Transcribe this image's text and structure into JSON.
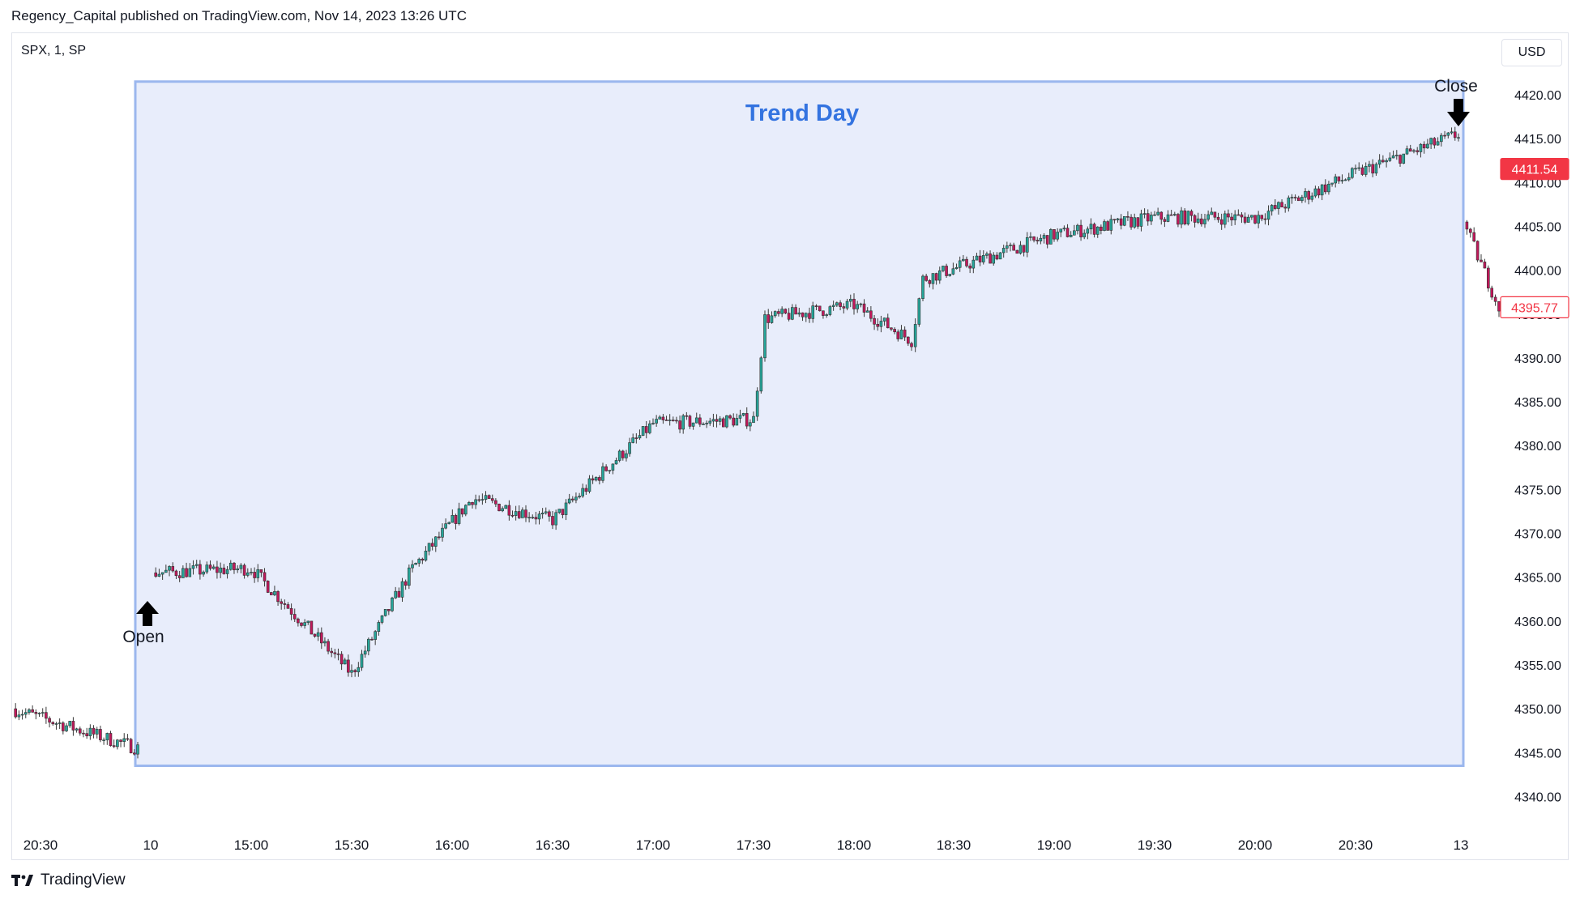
{
  "header": {
    "published": "Regency_Capital published on TradingView.com, Nov 14, 2023 13:26 UTC"
  },
  "symbol": "SPX, 1, SP",
  "currency": "USD",
  "branding": {
    "name": "TradingView",
    "logo_icon": "tradingview-logo-icon"
  },
  "colors": {
    "up": "#26a69a",
    "down": "#c2185b",
    "body": "#2f2f2f",
    "box_fill": "#e8edfb",
    "box_border": "#9bb7ee",
    "title": "#3373e0",
    "last_price_bg": "#f23645"
  },
  "chart_data": {
    "type": "candlestick",
    "title": "Trend Day",
    "annotations": [
      {
        "text": "Open",
        "icon": "arrow-up-icon",
        "x": "10",
        "y": 4359
      },
      {
        "text": "Close",
        "icon": "arrow-down-icon",
        "x": "13",
        "y": 4419
      }
    ],
    "x_ticks": [
      "20:30",
      "10",
      "15:00",
      "15:30",
      "16:00",
      "16:30",
      "17:00",
      "17:30",
      "18:00",
      "18:30",
      "19:00",
      "19:30",
      "20:00",
      "20:30",
      "13"
    ],
    "y_ticks": [
      "4420.00",
      "4415.00",
      "4410.00",
      "4405.00",
      "4400.00",
      "4395.00",
      "4390.00",
      "4385.00",
      "4380.00",
      "4375.00",
      "4370.00",
      "4365.00",
      "4360.00",
      "4355.00",
      "4350.00",
      "4345.00",
      "4340.00"
    ],
    "ylim": [
      4340,
      4420
    ],
    "price_labels": [
      {
        "text": "4411.54",
        "value": 4411.54,
        "style": "filled"
      },
      {
        "text": "4395.77",
        "value": 4395.77,
        "style": "outlined"
      }
    ],
    "highlight_box": {
      "x_start": "10",
      "x_end": "13",
      "y_low": 4343.5,
      "y_high": 4421.5
    },
    "price_path": [
      {
        "x": "20:30",
        "y": 4350
      },
      {
        "x": "10",
        "y": 4345.5
      },
      {
        "x": "10",
        "y": 4365.5
      },
      {
        "x": "15:00",
        "y": 4366
      },
      {
        "x": "15:30",
        "y": 4354
      },
      {
        "x": "16:00",
        "y": 4366
      },
      {
        "x": "16:00",
        "y": 4374
      },
      {
        "x": "16:30",
        "y": 4371.5
      },
      {
        "x": "17:00",
        "y": 4382.5
      },
      {
        "x": "17:30",
        "y": 4383
      },
      {
        "x": "17:30",
        "y": 4394.5
      },
      {
        "x": "18:00",
        "y": 4396
      },
      {
        "x": "18:30",
        "y": 4392
      },
      {
        "x": "18:30",
        "y": 4399
      },
      {
        "x": "19:00",
        "y": 4404
      },
      {
        "x": "19:30",
        "y": 4406
      },
      {
        "x": "20:00",
        "y": 4406
      },
      {
        "x": "20:30",
        "y": 4411
      },
      {
        "x": "13",
        "y": 4415.5
      },
      {
        "x": "13",
        "y": 4405.5
      },
      {
        "x": "13",
        "y": 4395.77
      }
    ]
  }
}
